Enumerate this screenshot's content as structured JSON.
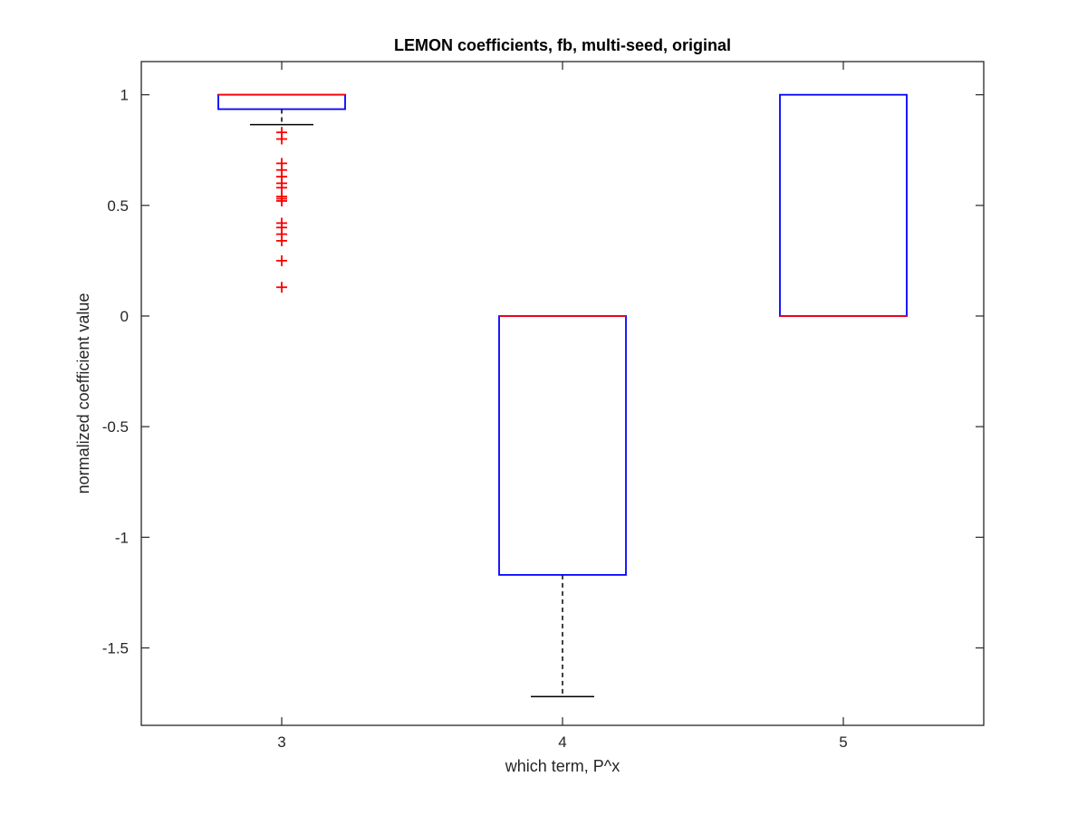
{
  "chart_data": {
    "type": "box",
    "title": "LEMON coefficients, fb, multi-seed, original",
    "xlabel": "which term, P^x",
    "ylabel": "normalized coefficient value",
    "categories": [
      "3",
      "4",
      "5"
    ],
    "ylim": [
      -1.85,
      1.15
    ],
    "yticks": [
      1,
      0.5,
      0,
      -0.5,
      -1,
      -1.5
    ],
    "ytick_labels": [
      "1",
      "0.5",
      "0",
      "-0.5",
      "-1",
      "-1.5"
    ],
    "grid": false,
    "boxes": [
      {
        "category": "3",
        "q1": 0.935,
        "median": 1.0,
        "q3": 1.0,
        "whisker_low": 0.865,
        "whisker_high": 1.0,
        "outliers": [
          0.83,
          0.8,
          0.69,
          0.66,
          0.63,
          0.6,
          0.58,
          0.54,
          0.53,
          0.52,
          0.42,
          0.4,
          0.37,
          0.34,
          0.25,
          0.13
        ]
      },
      {
        "category": "4",
        "q1": -1.17,
        "median": 0.0,
        "q3": 0.0,
        "whisker_low": -1.72,
        "whisker_high": 0.0,
        "outliers": []
      },
      {
        "category": "5",
        "q1": 0.0,
        "median": 0.0,
        "q3": 1.0,
        "whisker_low": 0.0,
        "whisker_high": 1.0,
        "outliers": []
      }
    ],
    "colors": {
      "box": "#0000ff",
      "median": "#ff0000",
      "whisker": "#000000",
      "outlier": "#ff0000",
      "axes": "#262626"
    }
  }
}
